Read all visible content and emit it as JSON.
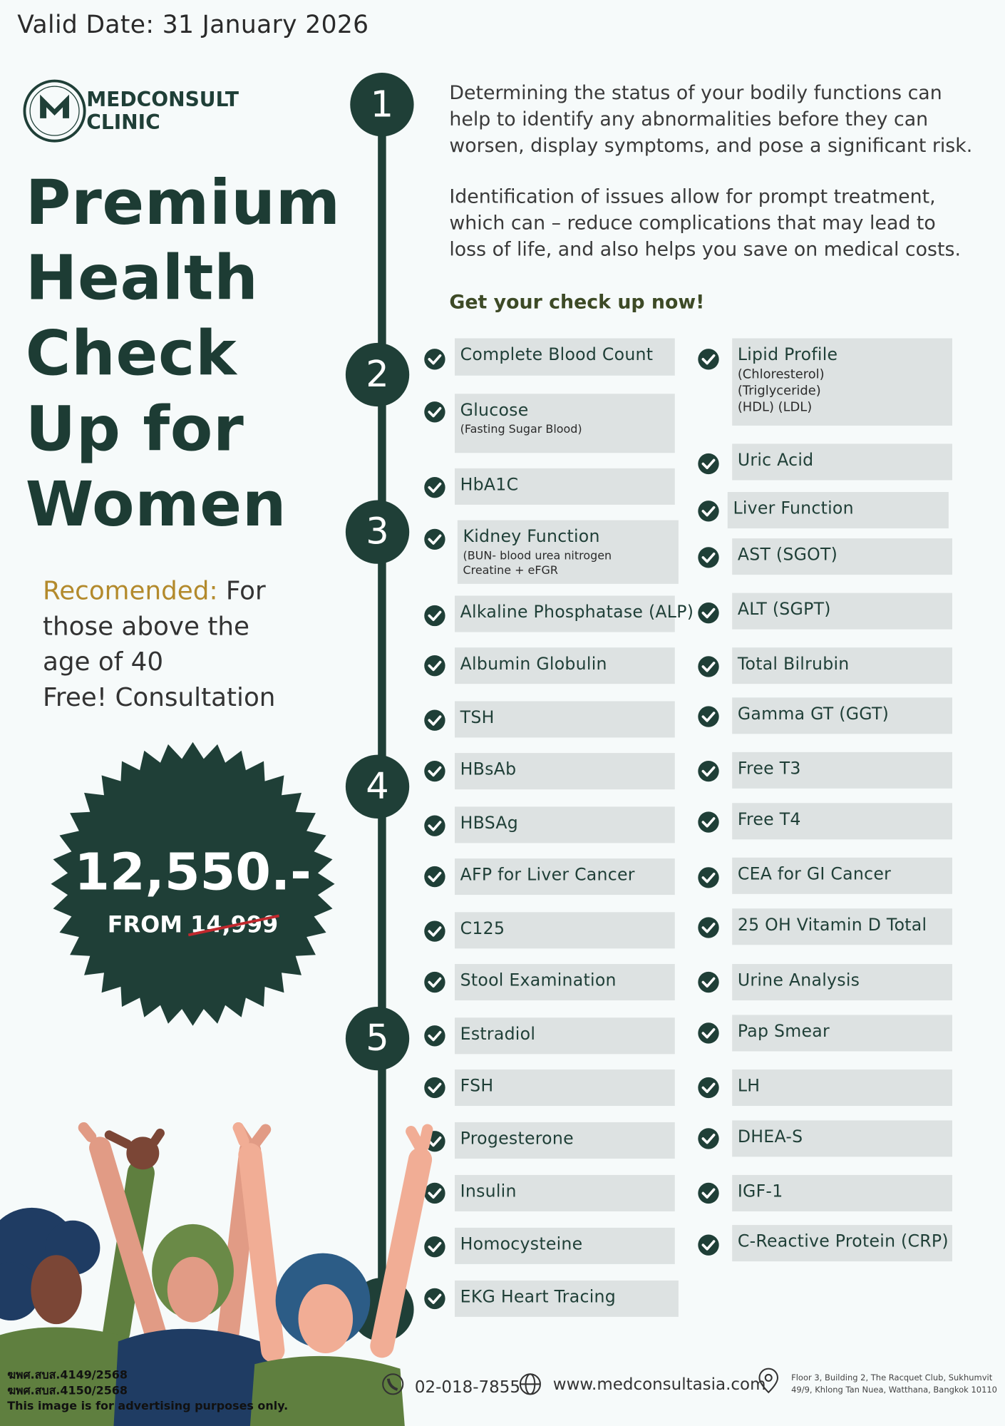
{
  "header": {
    "valid_date": "Valid Date: 31 January 2026"
  },
  "brand": {
    "name": "MEDCONSULT",
    "sub": "CLINIC"
  },
  "title": [
    "Premium",
    "Health",
    "Check",
    "Up for",
    "Women"
  ],
  "recommendation": {
    "label": "Recomended:",
    "lines": [
      "For",
      "those above the",
      "age of 40",
      "Free! Consultation"
    ]
  },
  "price": {
    "amount": "12,550.-",
    "from_label": "FROM",
    "original": "14,999"
  },
  "steps": [
    "1",
    "2",
    "3",
    "4",
    "5"
  ],
  "intro": [
    [
      "Determining the status of your bodily functions can",
      "help to identify any abnormalities before they can",
      "worsen, display symptoms, and pose a significant risk."
    ],
    [
      "Identification of issues allow for prompt treatment,",
      "which can – reduce complications that may lead to",
      "loss of life, and also helps you save on medical costs."
    ]
  ],
  "cta": "Get your check up now!",
  "tests": {
    "left": [
      {
        "name": "Complete Blood Count"
      },
      {
        "name": "Glucose",
        "details": [
          "(Fasting Sugar Blood)"
        ]
      },
      {
        "name": "HbA1C"
      },
      {
        "name": "Kidney Function",
        "details": [
          "(BUN- blood urea nitrogen",
          "Creatine + eFGR"
        ]
      },
      {
        "name": "Alkaline Phosphatase (ALP)"
      },
      {
        "name": "Albumin Globulin"
      },
      {
        "name": "TSH"
      },
      {
        "name": "HBsAb"
      },
      {
        "name": "HBSAg"
      },
      {
        "name": "AFP for Liver Cancer"
      },
      {
        "name": "C125"
      },
      {
        "name": "Stool Examination"
      },
      {
        "name": "Estradiol"
      },
      {
        "name": "FSH"
      },
      {
        "name": "Progesterone"
      },
      {
        "name": "Insulin"
      },
      {
        "name": "Homocysteine"
      },
      {
        "name": "EKG Heart Tracing"
      }
    ],
    "right": [
      {
        "name": "Lipid Profile",
        "details": [
          "(Chloresterol)",
          "(Triglyceride)",
          "(HDL) (LDL)"
        ]
      },
      {
        "name": "Uric Acid"
      },
      {
        "name": "Liver Function"
      },
      {
        "name": "AST (SGOT)"
      },
      {
        "name": "ALT (SGPT)"
      },
      {
        "name": "Total Bilrubin"
      },
      {
        "name": "Gamma GT (GGT)"
      },
      {
        "name": "Free T3"
      },
      {
        "name": "Free T4"
      },
      {
        "name": "CEA for GI Cancer"
      },
      {
        "name": "25 OH Vitamin D Total"
      },
      {
        "name": "Urine Analysis"
      },
      {
        "name": "Pap Smear"
      },
      {
        "name": "LH"
      },
      {
        "name": "DHEA-S"
      },
      {
        "name": "IGF-1"
      },
      {
        "name": "C-Reactive Protein (CRP)"
      }
    ]
  },
  "footer": {
    "phone": "02-018-7855",
    "website": "www.medconsultasia.com",
    "address": [
      "Floor 3, Building 2, The Racquet Club, Sukhumvit",
      "49/9, Khlong Tan Nuea, Watthana, Bangkok 10110"
    ],
    "licenses": [
      "ฆพศ.สบส.4149/2568",
      "ฆพศ.สบส.4150/2568"
    ],
    "disclaimer": "This image is for advertising purposes only."
  }
}
